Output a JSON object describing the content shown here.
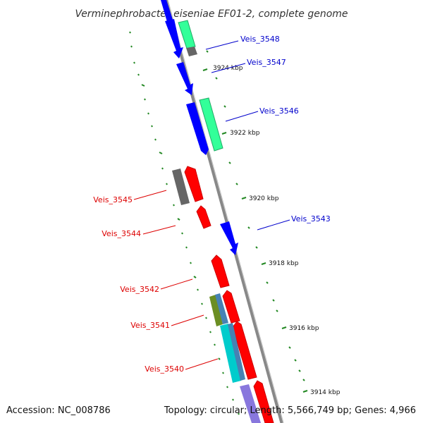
{
  "title": "Verminephrobacter eiseniae EF01-2, complete genome",
  "footer": {
    "accession": "Accession: NC_008786",
    "summary": "Topology: circular; Length: 5,566,749 bp; Genes: 4,966"
  },
  "colors": {
    "forward_label": "#0000cc",
    "reverse_label": "#dd0000",
    "backbone": "#777777",
    "tick": "#228822"
  },
  "kbp_labels": [
    "3924 kbp",
    "3922 kbp",
    "3920 kbp",
    "3918 kbp",
    "3916 kbp",
    "3914 kbp"
  ],
  "genes_forward": [
    "Veis_3548",
    "Veis_3547",
    "Veis_3546",
    "Veis_3543"
  ],
  "genes_reverse": [
    "Veis_3545",
    "Veis_3544",
    "Veis_3542",
    "Veis_3541",
    "Veis_3540"
  ]
}
